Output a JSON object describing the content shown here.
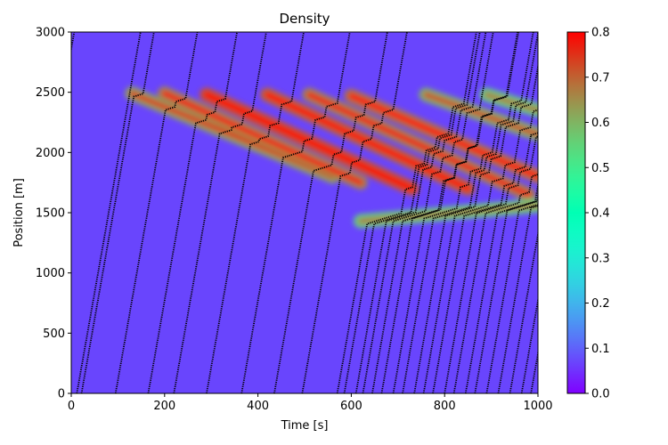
{
  "chart_data": {
    "type": "heatmap",
    "title": "Density",
    "xlabel": "Time [s]",
    "ylabel": "Position [m]",
    "xlim": [
      0,
      1000
    ],
    "ylim": [
      0,
      3000
    ],
    "x_ticks": [
      "0",
      "200",
      "400",
      "600",
      "800",
      "1000"
    ],
    "x_tick_values": [
      0,
      200,
      400,
      600,
      800,
      1000
    ],
    "y_ticks": [
      "0",
      "500",
      "1000",
      "1500",
      "2000",
      "2500",
      "3000"
    ],
    "y_tick_values": [
      0,
      500,
      1000,
      1500,
      2000,
      2500,
      3000
    ],
    "colorbar": {
      "colormap": "rainbow",
      "range": [
        0.0,
        0.8
      ],
      "ticks": [
        "0.0",
        "0.1",
        "0.2",
        "0.3",
        "0.4",
        "0.5",
        "0.6",
        "0.7",
        "0.8"
      ],
      "tick_values": [
        0.0,
        0.1,
        0.2,
        0.3,
        0.4,
        0.5,
        0.6,
        0.7,
        0.8
      ]
    },
    "background_density": 0.07,
    "jam_bands": [
      {
        "start_time": 130,
        "start_position": 2490,
        "end_time": 560,
        "end_position": 1800,
        "density": 0.62
      },
      {
        "start_time": 200,
        "start_position": 2490,
        "end_time": 620,
        "end_position": 1750,
        "density": 0.66
      },
      {
        "start_time": 290,
        "start_position": 2480,
        "end_time": 730,
        "end_position": 1700,
        "density": 0.72
      },
      {
        "start_time": 420,
        "start_position": 2480,
        "end_time": 850,
        "end_position": 1700,
        "density": 0.7
      },
      {
        "start_time": 510,
        "start_position": 2480,
        "end_time": 980,
        "end_position": 1650,
        "density": 0.66
      },
      {
        "start_time": 600,
        "start_position": 2470,
        "end_time": 1000,
        "end_position": 1800,
        "density": 0.68
      },
      {
        "start_time": 760,
        "start_position": 2480,
        "end_time": 1000,
        "end_position": 2150,
        "density": 0.6
      },
      {
        "start_time": 890,
        "start_position": 2480,
        "end_time": 1000,
        "end_position": 2350,
        "density": 0.55
      },
      {
        "start_time": 620,
        "start_position": 1430,
        "end_time": 1000,
        "end_position": 1560,
        "density": 0.55
      }
    ],
    "trajectories": [
      {
        "entry_time": -420
      },
      {
        "entry_time": -260
      },
      {
        "entry_time": -130
      },
      {
        "entry_time": 12
      },
      {
        "entry_time": 22
      },
      {
        "entry_time": 95
      },
      {
        "entry_time": 165
      },
      {
        "entry_time": 220
      },
      {
        "entry_time": 290
      },
      {
        "entry_time": 365
      },
      {
        "entry_time": 435
      },
      {
        "entry_time": 495
      },
      {
        "entry_time": 570
      },
      {
        "entry_time": 585
      },
      {
        "entry_time": 610
      },
      {
        "entry_time": 625
      },
      {
        "entry_time": 645
      },
      {
        "entry_time": 665
      },
      {
        "entry_time": 690
      },
      {
        "entry_time": 710
      },
      {
        "entry_time": 735
      },
      {
        "entry_time": 755
      },
      {
        "entry_time": 775
      },
      {
        "entry_time": 800
      },
      {
        "entry_time": 820
      },
      {
        "entry_time": 845
      },
      {
        "entry_time": 865
      },
      {
        "entry_time": 890
      },
      {
        "entry_time": 915
      },
      {
        "entry_time": 940
      },
      {
        "entry_time": 965
      },
      {
        "entry_time": 985
      }
    ]
  }
}
